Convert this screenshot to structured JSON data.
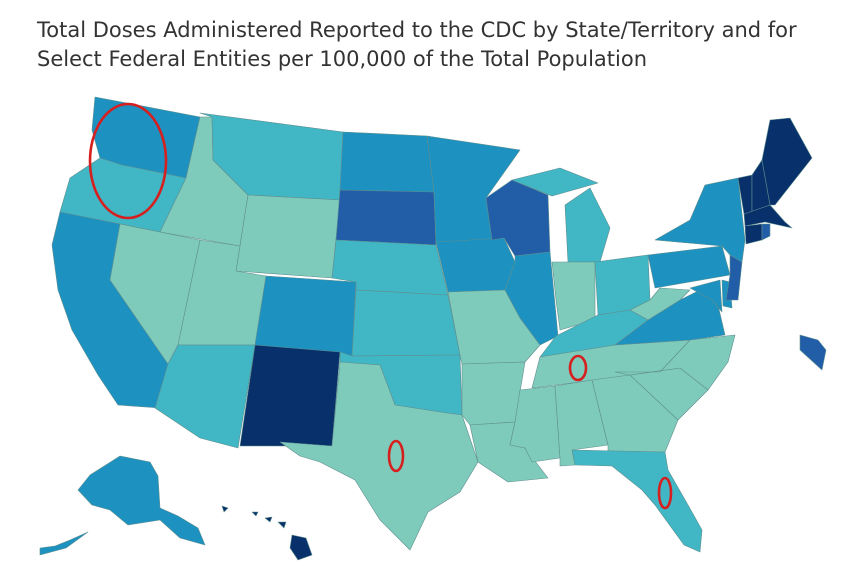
{
  "title": {
    "line1": "Total Doses Administered Reported to the CDC by State/Territory and for",
    "line2": "Select Federal Entities per 100,000 of the Total Population"
  },
  "colors": {
    "c1": "#7fcbbb",
    "c2": "#41b6c4",
    "c3": "#1d91c0",
    "c4": "#225ea8",
    "c5": "#08306b",
    "marker": "#d61f1f"
  },
  "map": {
    "states": [
      {
        "id": "WA",
        "tier": "c3"
      },
      {
        "id": "OR",
        "tier": "c2"
      },
      {
        "id": "CA",
        "tier": "c3"
      },
      {
        "id": "ID",
        "tier": "c1"
      },
      {
        "id": "NV",
        "tier": "c1"
      },
      {
        "id": "MT",
        "tier": "c2"
      },
      {
        "id": "WY",
        "tier": "c1"
      },
      {
        "id": "UT",
        "tier": "c1"
      },
      {
        "id": "AZ",
        "tier": "c2"
      },
      {
        "id": "CO",
        "tier": "c3"
      },
      {
        "id": "NM",
        "tier": "c5"
      },
      {
        "id": "ND",
        "tier": "c3"
      },
      {
        "id": "SD",
        "tier": "c4"
      },
      {
        "id": "NE",
        "tier": "c2"
      },
      {
        "id": "KS",
        "tier": "c2"
      },
      {
        "id": "OK",
        "tier": "c2"
      },
      {
        "id": "TX",
        "tier": "c1"
      },
      {
        "id": "MN",
        "tier": "c3"
      },
      {
        "id": "IA",
        "tier": "c3"
      },
      {
        "id": "MO",
        "tier": "c1"
      },
      {
        "id": "AR",
        "tier": "c1"
      },
      {
        "id": "LA",
        "tier": "c1"
      },
      {
        "id": "WI",
        "tier": "c4"
      },
      {
        "id": "IL",
        "tier": "c3"
      },
      {
        "id": "MI",
        "tier": "c2"
      },
      {
        "id": "IN",
        "tier": "c1"
      },
      {
        "id": "OH",
        "tier": "c2"
      },
      {
        "id": "KY",
        "tier": "c2"
      },
      {
        "id": "TN",
        "tier": "c1"
      },
      {
        "id": "MS",
        "tier": "c1"
      },
      {
        "id": "AL",
        "tier": "c1"
      },
      {
        "id": "GA",
        "tier": "c1"
      },
      {
        "id": "FL",
        "tier": "c2"
      },
      {
        "id": "SC",
        "tier": "c1"
      },
      {
        "id": "NC",
        "tier": "c1"
      },
      {
        "id": "VA",
        "tier": "c3"
      },
      {
        "id": "WV",
        "tier": "c1"
      },
      {
        "id": "PA",
        "tier": "c3"
      },
      {
        "id": "NY",
        "tier": "c3"
      },
      {
        "id": "NJ",
        "tier": "c4"
      },
      {
        "id": "DE",
        "tier": "c3"
      },
      {
        "id": "MD",
        "tier": "c3"
      },
      {
        "id": "ME",
        "tier": "c5"
      },
      {
        "id": "NH",
        "tier": "c5"
      },
      {
        "id": "VT",
        "tier": "c5"
      },
      {
        "id": "MA",
        "tier": "c5"
      },
      {
        "id": "CT",
        "tier": "c5"
      },
      {
        "id": "RI",
        "tier": "c4"
      },
      {
        "id": "AK",
        "tier": "c3"
      },
      {
        "id": "HI",
        "tier": "c5"
      },
      {
        "id": "PR",
        "tier": "c4"
      }
    ],
    "markers": [
      "oregon",
      "tennessee",
      "texas",
      "florida"
    ]
  }
}
